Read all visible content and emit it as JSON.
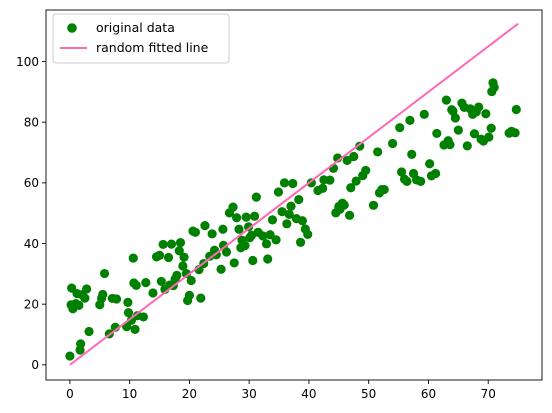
{
  "chart_data": {
    "type": "scatter",
    "title": "",
    "xlabel": "",
    "ylabel": "",
    "xlim": [
      -4,
      79
    ],
    "ylim": [
      -5,
      117
    ],
    "x_ticks": [
      "0",
      "10",
      "20",
      "30",
      "40",
      "50",
      "60",
      "70"
    ],
    "y_ticks": [
      "0",
      "20",
      "40",
      "60",
      "80",
      "100"
    ],
    "x_tick_values": [
      0,
      10,
      20,
      30,
      40,
      50,
      60,
      70
    ],
    "y_tick_values": [
      0,
      20,
      40,
      60,
      80,
      100
    ],
    "grid": false,
    "legend_position": "top-left",
    "series": [
      {
        "name": "original data",
        "kind": "scatter",
        "color": "#008000",
        "points": [
          [
            0.0,
            2.9
          ],
          [
            0.2,
            19.8
          ],
          [
            0.3,
            25.3
          ],
          [
            0.5,
            18.5
          ],
          [
            1.0,
            20.2
          ],
          [
            1.2,
            23.5
          ],
          [
            1.5,
            19.6
          ],
          [
            1.7,
            4.9
          ],
          [
            1.8,
            6.9
          ],
          [
            2.0,
            23.1
          ],
          [
            2.5,
            22.0
          ],
          [
            2.8,
            25.0
          ],
          [
            3.2,
            11.0
          ],
          [
            5.0,
            19.8
          ],
          [
            5.3,
            21.9
          ],
          [
            5.5,
            23.2
          ],
          [
            5.8,
            30.1
          ],
          [
            6.6,
            10.2
          ],
          [
            7.1,
            21.9
          ],
          [
            7.6,
            12.4
          ],
          [
            7.8,
            21.7
          ],
          [
            9.5,
            12.6
          ],
          [
            9.7,
            20.6
          ],
          [
            9.8,
            17.2
          ],
          [
            10.3,
            14.7
          ],
          [
            10.6,
            35.2
          ],
          [
            10.7,
            27.0
          ],
          [
            10.9,
            11.7
          ],
          [
            11.1,
            26.2
          ],
          [
            11.3,
            16.2
          ],
          [
            12.3,
            15.8
          ],
          [
            12.7,
            27.1
          ],
          [
            13.9,
            23.7
          ],
          [
            14.5,
            35.6
          ],
          [
            15.0,
            36.1
          ],
          [
            15.3,
            27.5
          ],
          [
            15.6,
            39.7
          ],
          [
            15.9,
            24.9
          ],
          [
            16.5,
            35.4
          ],
          [
            16.7,
            26.3
          ],
          [
            17.0,
            39.8
          ],
          [
            17.3,
            26.1
          ],
          [
            17.6,
            28.2
          ],
          [
            17.9,
            29.5
          ],
          [
            18.3,
            37.6
          ],
          [
            18.5,
            40.3
          ],
          [
            18.9,
            32.6
          ],
          [
            19.1,
            35.5
          ],
          [
            19.5,
            30.1
          ],
          [
            19.7,
            21.2
          ],
          [
            20.0,
            22.9
          ],
          [
            20.3,
            27.8
          ],
          [
            20.6,
            44.1
          ],
          [
            21.0,
            43.7
          ],
          [
            21.6,
            31.4
          ],
          [
            21.9,
            22.0
          ],
          [
            22.4,
            33.4
          ],
          [
            22.6,
            45.9
          ],
          [
            23.4,
            35.8
          ],
          [
            23.8,
            43.2
          ],
          [
            24.2,
            37.8
          ],
          [
            24.5,
            36.3
          ],
          [
            25.3,
            31.5
          ],
          [
            25.6,
            44.7
          ],
          [
            25.7,
            39.4
          ],
          [
            26.2,
            37.2
          ],
          [
            26.7,
            50.1
          ],
          [
            27.3,
            52.0
          ],
          [
            27.5,
            33.6
          ],
          [
            27.9,
            48.5
          ],
          [
            28.3,
            44.7
          ],
          [
            28.6,
            38.6
          ],
          [
            28.8,
            41.1
          ],
          [
            29.3,
            39.3
          ],
          [
            29.5,
            48.7
          ],
          [
            29.9,
            45.5
          ],
          [
            30.1,
            41.9
          ],
          [
            30.4,
            42.7
          ],
          [
            30.6,
            34.4
          ],
          [
            30.9,
            49.0
          ],
          [
            31.2,
            55.3
          ],
          [
            31.5,
            43.7
          ],
          [
            32.3,
            42.5
          ],
          [
            32.9,
            39.9
          ],
          [
            33.1,
            34.9
          ],
          [
            33.5,
            42.9
          ],
          [
            33.9,
            47.8
          ],
          [
            34.5,
            41.2
          ],
          [
            34.9,
            57.0
          ],
          [
            35.5,
            50.5
          ],
          [
            35.9,
            60.0
          ],
          [
            36.3,
            46.5
          ],
          [
            36.7,
            49.6
          ],
          [
            37.0,
            52.3
          ],
          [
            37.3,
            59.8
          ],
          [
            37.9,
            48.2
          ],
          [
            38.3,
            54.5
          ],
          [
            38.6,
            40.4
          ],
          [
            38.9,
            47.5
          ],
          [
            39.4,
            44.8
          ],
          [
            39.8,
            43.0
          ],
          [
            40.4,
            60.0
          ],
          [
            41.5,
            57.5
          ],
          [
            42.3,
            58.2
          ],
          [
            42.5,
            61.0
          ],
          [
            43.5,
            60.9
          ],
          [
            44.1,
            64.8
          ],
          [
            44.5,
            50.1
          ],
          [
            44.8,
            68.2
          ],
          [
            45.0,
            52.2
          ],
          [
            45.2,
            51.3
          ],
          [
            45.6,
            53.3
          ],
          [
            45.9,
            52.7
          ],
          [
            46.4,
            67.4
          ],
          [
            46.8,
            49.3
          ],
          [
            47.0,
            58.4
          ],
          [
            47.5,
            68.7
          ],
          [
            47.9,
            60.6
          ],
          [
            48.5,
            72.1
          ],
          [
            49.0,
            62.4
          ],
          [
            49.5,
            64.1
          ],
          [
            50.8,
            52.6
          ],
          [
            51.5,
            70.2
          ],
          [
            51.8,
            56.7
          ],
          [
            52.2,
            57.8
          ],
          [
            52.6,
            57.8
          ],
          [
            54.0,
            73.0
          ],
          [
            55.2,
            78.2
          ],
          [
            55.5,
            63.6
          ],
          [
            56.0,
            61.2
          ],
          [
            56.4,
            60.5
          ],
          [
            56.9,
            80.6
          ],
          [
            57.2,
            69.4
          ],
          [
            57.5,
            63.1
          ],
          [
            58.0,
            61.0
          ],
          [
            58.7,
            60.5
          ],
          [
            59.3,
            82.6
          ],
          [
            60.2,
            66.3
          ],
          [
            60.5,
            62.3
          ],
          [
            61.2,
            63.1
          ],
          [
            61.4,
            76.3
          ],
          [
            62.6,
            72.5
          ],
          [
            63.0,
            87.3
          ],
          [
            63.3,
            73.9
          ],
          [
            63.6,
            72.6
          ],
          [
            63.9,
            84.1
          ],
          [
            64.1,
            83.6
          ],
          [
            64.5,
            81.4
          ],
          [
            65.0,
            77.4
          ],
          [
            65.6,
            86.3
          ],
          [
            66.0,
            84.9
          ],
          [
            66.5,
            72.2
          ],
          [
            67.0,
            84.4
          ],
          [
            67.4,
            82.6
          ],
          [
            67.7,
            76.2
          ],
          [
            68.0,
            83.4
          ],
          [
            68.4,
            85.0
          ],
          [
            68.8,
            74.4
          ],
          [
            69.2,
            73.8
          ],
          [
            69.6,
            82.8
          ],
          [
            70.1,
            75.1
          ],
          [
            70.5,
            78.0
          ],
          [
            70.6,
            90.1
          ],
          [
            70.8,
            93.0
          ],
          [
            71.0,
            91.5
          ],
          [
            73.5,
            76.4
          ],
          [
            73.9,
            77.0
          ],
          [
            74.5,
            76.5
          ],
          [
            74.7,
            84.2
          ]
        ]
      },
      {
        "name": "random fitted line",
        "kind": "line",
        "color": "#ff69b4",
        "points": [
          [
            0,
            0
          ],
          [
            75,
            112.5
          ]
        ]
      }
    ]
  }
}
